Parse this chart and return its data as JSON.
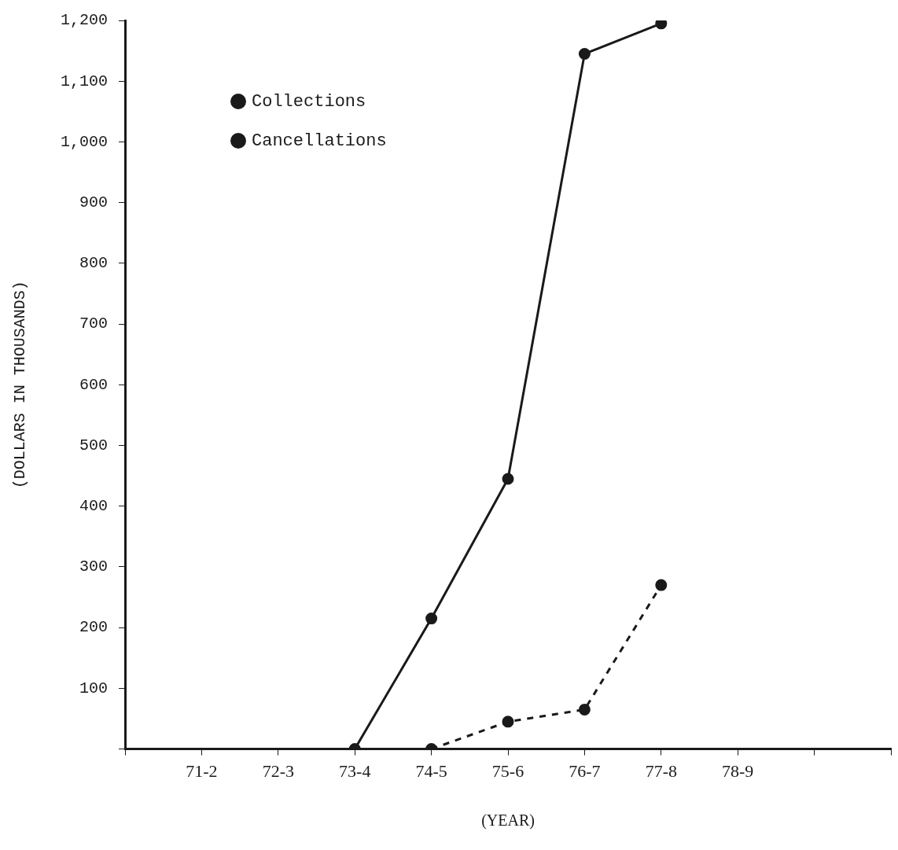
{
  "chart_data": {
    "type": "line",
    "xlabel": "(YEAR)",
    "ylabel": "(DOLLARS IN THOUSANDS)",
    "categories": [
      null,
      "71-2",
      "72-3",
      "73-4",
      "74-5",
      "75-6",
      "76-7",
      "77-8",
      "78-9",
      null,
      null
    ],
    "series": [
      {
        "name": "Collections",
        "color": "#1a1a1a",
        "line_style": "solid",
        "values": [
          null,
          null,
          null,
          0,
          215,
          445,
          1145,
          1195,
          null,
          null,
          null
        ]
      },
      {
        "name": "Cancellations",
        "color": "#1a1a1a",
        "line_style": "dashed",
        "values": [
          null,
          null,
          null,
          null,
          0,
          45,
          65,
          270,
          null,
          null,
          null
        ]
      }
    ],
    "ylim": [
      0,
      1200
    ],
    "yticks": [
      {
        "value": 0,
        "label": null
      },
      {
        "value": 100,
        "label": "100"
      },
      {
        "value": 200,
        "label": "200"
      },
      {
        "value": 300,
        "label": "300"
      },
      {
        "value": 400,
        "label": "400"
      },
      {
        "value": 500,
        "label": "500"
      },
      {
        "value": 600,
        "label": "600"
      },
      {
        "value": 700,
        "label": "700"
      },
      {
        "value": 800,
        "label": "800"
      },
      {
        "value": 900,
        "label": "900"
      },
      {
        "value": 1000,
        "label": "1,000"
      },
      {
        "value": 1100,
        "label": "1,100"
      },
      {
        "value": 1200,
        "label": "1,200"
      }
    ],
    "grid": false,
    "legend": "top left",
    "marker": "circle"
  }
}
